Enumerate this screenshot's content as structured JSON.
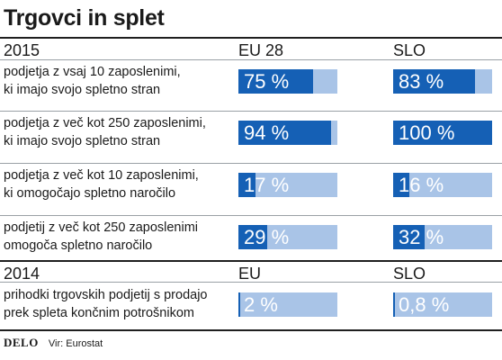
{
  "title": "Trgovci in splet",
  "colors": {
    "fill": "#1560b5",
    "track": "#a9c4e7",
    "value_text": "#ffffff"
  },
  "chart_data": {
    "type": "bar",
    "sections": [
      {
        "year": "2015",
        "columns": [
          "EU 28",
          "SLO"
        ],
        "rows": [
          {
            "label_lines": [
              "podjetja z vsaj 10 zaposlenimi,",
              "ki imajo svojo spletno stran"
            ],
            "values": [
              75,
              83
            ],
            "value_labels": [
              "75 %",
              "83 %"
            ]
          },
          {
            "label_lines": [
              "podjetja z več kot 250 zaposlenimi,",
              "ki imajo svojo spletno stran"
            ],
            "values": [
              94,
              100
            ],
            "value_labels": [
              "94 %",
              "100 %"
            ]
          },
          {
            "label_lines": [
              "podjetja z več kot 10 zaposlenimi,",
              "ki omogočajo spletno naročilo"
            ],
            "values": [
              17,
              16
            ],
            "value_labels": [
              "17 %",
              "16 %"
            ]
          },
          {
            "label_lines": [
              "podjetij z več kot 250 zaposlenimi",
              "omogoča spletno naročilo"
            ],
            "values": [
              29,
              32
            ],
            "value_labels": [
              "29 %",
              "32 %"
            ]
          }
        ]
      },
      {
        "year": "2014",
        "columns": [
          "EU",
          "SLO"
        ],
        "rows": [
          {
            "label_lines": [
              "prihodki trgovskih podjetij s prodajo",
              "prek spleta končnim potrošnikom"
            ],
            "values": [
              2,
              0.8
            ],
            "value_labels": [
              "2 %",
              "0,8 %"
            ]
          }
        ]
      }
    ],
    "xlim": [
      0,
      100
    ]
  },
  "footer": {
    "logo": "DELO",
    "source": "Vir: Eurostat"
  }
}
